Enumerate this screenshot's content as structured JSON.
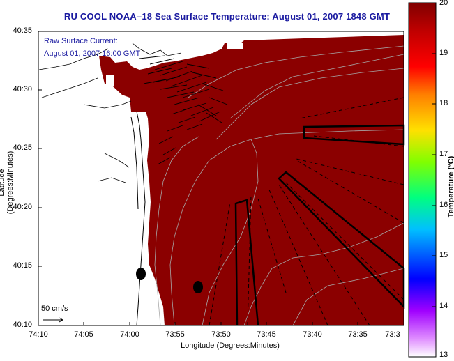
{
  "title": "RU COOL  NOAA–18  Sea Surface Temperature:  August 01, 2007 1848 GMT",
  "annotation": {
    "line1": "Raw Surface Current:",
    "line2": "August 01, 2007 16:00 GMT"
  },
  "scale_label": "50 cm/s",
  "axes": {
    "xlabel": "Longitude (Degrees:Minutes)",
    "ylabel": "Latitude (Degrees:Minutes)",
    "xticks": [
      "74:10",
      "74:05",
      "74:00",
      "73:55",
      "73:50",
      "73:45",
      "73:40",
      "73:35",
      "73:3"
    ],
    "yticks": [
      "40:35",
      "40:30",
      "40:25",
      "40:20",
      "40:15",
      "40:10"
    ]
  },
  "colorbar": {
    "label": "Temperature (°C)",
    "ticks": [
      "20",
      "19",
      "18",
      "17",
      "16",
      "15",
      "14",
      "13"
    ],
    "range": [
      13,
      20
    ]
  },
  "colors": {
    "sst": "#8b0000",
    "title": "#1a1aa0",
    "land": "#ffffff"
  }
}
